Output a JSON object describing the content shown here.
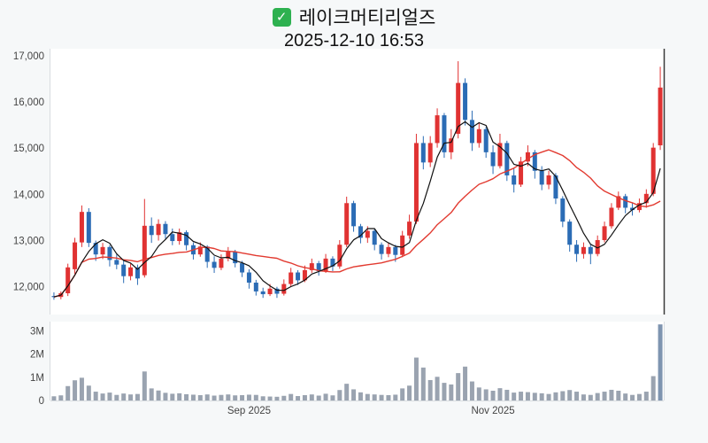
{
  "header": {
    "check_glyph": "✓",
    "title": "레이크머티리얼즈",
    "timestamp": "2025-12-10 16:53"
  },
  "colors": {
    "up": "#e03232",
    "down": "#2b6cb5",
    "ma_fast": "#111111",
    "ma_slow": "#e23a30",
    "volume": "#9aa3b0",
    "volume_last": "#7e94b0",
    "axis_text": "#444444",
    "axis_line": "#d8dce0",
    "right_axis_line": "#3a3a3a",
    "pane_bg": "#ffffff",
    "checkbox_green": "#2eb150"
  },
  "chart_data": {
    "type": "candlestick",
    "title": "레이크머티리얼즈",
    "timestamp": "2025-12-10 16:53",
    "price_axis": {
      "min": 11400,
      "max": 17150,
      "ticks": [
        12000,
        13000,
        14000,
        15000,
        16000,
        17000
      ]
    },
    "volume_axis": {
      "max": 3400000,
      "ticks": [
        {
          "label": "3M",
          "value": 3000000
        },
        {
          "label": "2M",
          "value": 2000000
        },
        {
          "label": "1M",
          "value": 1000000
        },
        {
          "label": "0",
          "value": 0
        }
      ]
    },
    "x_axis": {
      "ticks": [
        {
          "label": "Sep 2025",
          "index": 28
        },
        {
          "label": "Nov 2025",
          "index": 63
        }
      ]
    },
    "moving_averages": [
      {
        "name": "ma-slow",
        "period": 20,
        "color": "#e23a30",
        "width": 1.4
      },
      {
        "name": "ma-fast",
        "period": 5,
        "color": "#111111",
        "width": 1.2
      }
    ],
    "candles": [
      [
        11800,
        11880,
        11720,
        11780
      ],
      [
        11780,
        11900,
        11730,
        11860
      ],
      [
        11860,
        12500,
        11800,
        12420
      ],
      [
        12380,
        13060,
        12280,
        12960
      ],
      [
        12960,
        13760,
        12860,
        13620
      ],
      [
        13620,
        13700,
        12860,
        12950
      ],
      [
        12950,
        13000,
        12560,
        12700
      ],
      [
        12700,
        12950,
        12600,
        12860
      ],
      [
        12860,
        12900,
        12440,
        12580
      ],
      [
        12580,
        12700,
        12380,
        12480
      ],
      [
        12480,
        12560,
        12080,
        12230
      ],
      [
        12230,
        12500,
        12140,
        12420
      ],
      [
        12420,
        12480,
        12040,
        12180
      ],
      [
        12250,
        13900,
        12200,
        13320
      ],
      [
        13320,
        13500,
        12950,
        13120
      ],
      [
        13120,
        13460,
        13000,
        13360
      ],
      [
        13360,
        13420,
        13040,
        13140
      ],
      [
        13140,
        13260,
        12900,
        12990
      ],
      [
        12990,
        13260,
        12910,
        13180
      ],
      [
        13180,
        13220,
        12790,
        12900
      ],
      [
        12900,
        12960,
        12590,
        12700
      ],
      [
        12700,
        12960,
        12650,
        12870
      ],
      [
        12870,
        12900,
        12410,
        12540
      ],
      [
        12540,
        12660,
        12300,
        12410
      ],
      [
        12410,
        12700,
        12360,
        12610
      ],
      [
        12610,
        12860,
        12550,
        12760
      ],
      [
        12760,
        12800,
        12420,
        12510
      ],
      [
        12510,
        12560,
        12210,
        12310
      ],
      [
        12310,
        12380,
        11960,
        12090
      ],
      [
        12090,
        12150,
        11810,
        11900
      ],
      [
        11900,
        11980,
        11760,
        11840
      ],
      [
        11840,
        12060,
        11800,
        11960
      ],
      [
        11960,
        12000,
        11760,
        11850
      ],
      [
        11850,
        12160,
        11810,
        12060
      ],
      [
        12060,
        12410,
        12010,
        12310
      ],
      [
        12310,
        12360,
        12040,
        12140
      ],
      [
        12140,
        12460,
        12100,
        12360
      ],
      [
        12360,
        12610,
        12300,
        12510
      ],
      [
        12510,
        12560,
        12240,
        12340
      ],
      [
        12340,
        12710,
        12300,
        12610
      ],
      [
        12610,
        12660,
        12340,
        12440
      ],
      [
        12440,
        13010,
        12390,
        12910
      ],
      [
        12910,
        13950,
        12860,
        13810
      ],
      [
        13810,
        13860,
        13190,
        13310
      ],
      [
        13310,
        13360,
        12940,
        13060
      ],
      [
        13060,
        13310,
        12950,
        13210
      ],
      [
        13210,
        13260,
        12790,
        12910
      ],
      [
        12910,
        12960,
        12590,
        12710
      ],
      [
        12710,
        12960,
        12640,
        12860
      ],
      [
        12860,
        12910,
        12540,
        12690
      ],
      [
        12690,
        13210,
        12640,
        13110
      ],
      [
        13110,
        13560,
        13040,
        13410
      ],
      [
        13410,
        15310,
        13360,
        15110
      ],
      [
        15110,
        15260,
        14540,
        14690
      ],
      [
        14690,
        15260,
        14590,
        15110
      ],
      [
        15110,
        15860,
        15010,
        15710
      ],
      [
        15710,
        15760,
        14790,
        14910
      ],
      [
        14910,
        15410,
        14760,
        15210
      ],
      [
        15310,
        16880,
        15210,
        16410
      ],
      [
        16410,
        16510,
        15490,
        15610
      ],
      [
        15610,
        15810,
        14940,
        15110
      ],
      [
        15110,
        15560,
        15010,
        15410
      ],
      [
        15410,
        15460,
        14790,
        14910
      ],
      [
        14910,
        15060,
        14440,
        14610
      ],
      [
        14610,
        15310,
        14560,
        15110
      ],
      [
        15110,
        15160,
        14290,
        14410
      ],
      [
        14410,
        14560,
        14040,
        14210
      ],
      [
        14210,
        14810,
        14160,
        14710
      ],
      [
        14710,
        15060,
        14610,
        14910
      ],
      [
        14910,
        14960,
        14340,
        14510
      ],
      [
        14510,
        14610,
        14090,
        14210
      ],
      [
        14210,
        14510,
        14110,
        14410
      ],
      [
        14410,
        14460,
        13790,
        13910
      ],
      [
        13910,
        13960,
        13290,
        13410
      ],
      [
        13410,
        13460,
        12760,
        12910
      ],
      [
        12910,
        13010,
        12540,
        12710
      ],
      [
        12710,
        12960,
        12610,
        12860
      ],
      [
        12860,
        12910,
        12490,
        12710
      ],
      [
        12710,
        13110,
        12660,
        13010
      ],
      [
        13010,
        13410,
        12960,
        13310
      ],
      [
        13310,
        13810,
        13260,
        13710
      ],
      [
        13710,
        14060,
        13660,
        13960
      ],
      [
        13960,
        14010,
        13590,
        13710
      ],
      [
        13710,
        13810,
        13540,
        13660
      ],
      [
        13660,
        13910,
        13610,
        13810
      ],
      [
        13810,
        14110,
        13710,
        14010
      ],
      [
        14010,
        15110,
        13960,
        15010
      ],
      [
        15060,
        16760,
        14960,
        16310
      ]
    ],
    "volumes": [
      180000,
      220000,
      620000,
      870000,
      980000,
      640000,
      380000,
      300000,
      340000,
      240000,
      300000,
      260000,
      280000,
      1250000,
      520000,
      430000,
      330000,
      290000,
      310000,
      270000,
      250000,
      230000,
      260000,
      210000,
      240000,
      260000,
      220000,
      230000,
      250000,
      240000,
      180000,
      170000,
      160000,
      200000,
      280000,
      190000,
      230000,
      260000,
      210000,
      290000,
      220000,
      450000,
      720000,
      480000,
      350000,
      280000,
      260000,
      240000,
      230000,
      250000,
      520000,
      640000,
      1850000,
      1420000,
      880000,
      1020000,
      760000,
      690000,
      1180000,
      1460000,
      820000,
      560000,
      480000,
      420000,
      530000,
      460000,
      340000,
      380000,
      360000,
      330000,
      310000,
      280000,
      350000,
      400000,
      450000,
      380000,
      260000,
      240000,
      320000,
      380000,
      460000,
      420000,
      300000,
      240000,
      280000,
      380000,
      1050000,
      3280000
    ]
  }
}
